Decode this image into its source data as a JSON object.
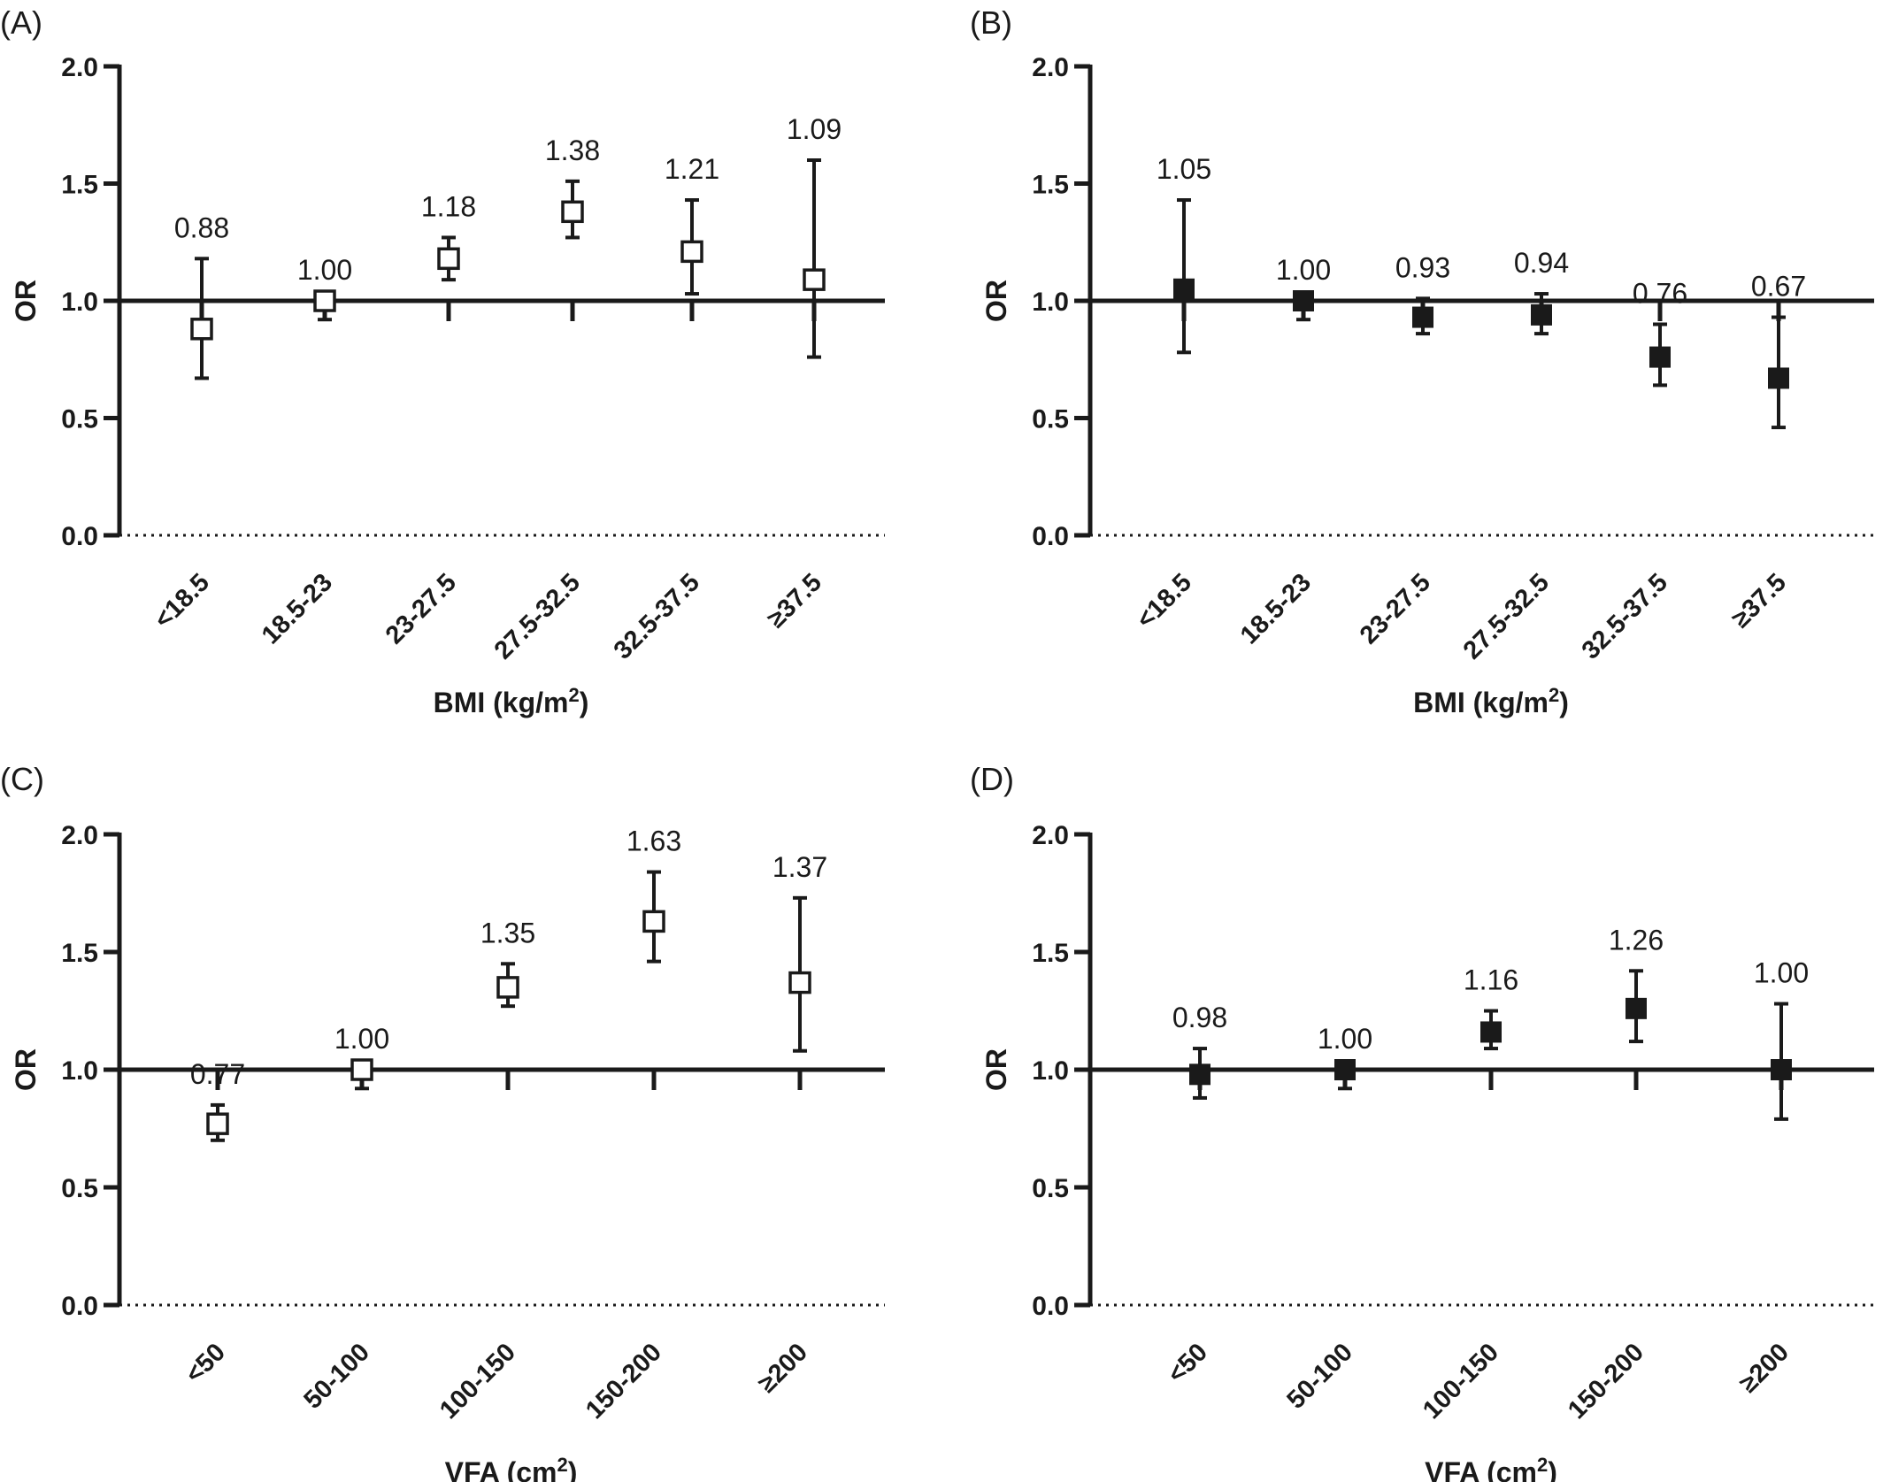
{
  "chart_data": [
    {
      "panel": "(A)",
      "type": "scatter",
      "marker": "open-square",
      "color": "#1a1a1a",
      "ylabel": "OR",
      "xlabel": "BMI (kg/m",
      "xlabel_sup": "2",
      "xlabel_tail": ")",
      "yticks": [
        "0.0",
        "0.5",
        "1.0",
        "1.5",
        "2.0"
      ],
      "ylim": [
        0,
        2
      ],
      "reference_line": 1.0,
      "categories": [
        "<18.5",
        "18.5-23",
        "23-27.5",
        "27.5-32.5",
        "32.5-37.5",
        "≥37.5"
      ],
      "values": [
        0.88,
        1.0,
        1.18,
        1.38,
        1.21,
        1.09
      ],
      "labels": [
        "0.88",
        "1.00",
        "1.18",
        "1.38",
        "1.21",
        "1.09"
      ],
      "ci_lower": [
        0.67,
        0.92,
        1.09,
        1.27,
        1.03,
        0.76
      ],
      "ci_upper": [
        1.18,
        1.0,
        1.27,
        1.51,
        1.43,
        1.6
      ]
    },
    {
      "panel": "(B)",
      "type": "scatter",
      "marker": "filled-square",
      "color": "#1a1a1a",
      "ylabel": "OR",
      "xlabel": "BMI (kg/m",
      "xlabel_sup": "2",
      "xlabel_tail": ")",
      "yticks": [
        "0.0",
        "0.5",
        "1.0",
        "1.5",
        "2.0"
      ],
      "ylim": [
        0,
        2
      ],
      "reference_line": 1.0,
      "categories": [
        "<18.5",
        "18.5-23",
        "23-27.5",
        "27.5-32.5",
        "32.5-37.5",
        "≥37.5"
      ],
      "values": [
        1.05,
        1.0,
        0.93,
        0.94,
        0.76,
        0.67
      ],
      "labels": [
        "1.05",
        "1.00",
        "0.93",
        "0.94",
        "0.76",
        "0.67"
      ],
      "ci_lower": [
        0.78,
        0.92,
        0.86,
        0.86,
        0.64,
        0.46
      ],
      "ci_upper": [
        1.43,
        1.0,
        1.01,
        1.03,
        0.9,
        0.93
      ]
    },
    {
      "panel": "(C)",
      "type": "scatter",
      "marker": "open-square",
      "color": "#1a1a1a",
      "ylabel": "OR",
      "xlabel": "VFA (cm",
      "xlabel_sup": "2",
      "xlabel_tail": ")",
      "yticks": [
        "0.0",
        "0.5",
        "1.0",
        "1.5",
        "2.0"
      ],
      "ylim": [
        0,
        2
      ],
      "reference_line": 1.0,
      "categories": [
        "<50",
        "50-100",
        "100-150",
        "150-200",
        "≥200"
      ],
      "values": [
        0.77,
        1.0,
        1.35,
        1.63,
        1.37
      ],
      "labels": [
        "0.77",
        "1.00",
        "1.35",
        "1.63",
        "1.37"
      ],
      "ci_lower": [
        0.7,
        0.92,
        1.27,
        1.46,
        1.08
      ],
      "ci_upper": [
        0.85,
        1.0,
        1.45,
        1.84,
        1.73
      ]
    },
    {
      "panel": "(D)",
      "type": "scatter",
      "marker": "filled-square",
      "color": "#1a1a1a",
      "ylabel": "OR",
      "xlabel": "VFA (cm",
      "xlabel_sup": "2",
      "xlabel_tail": ")",
      "yticks": [
        "0.0",
        "0.5",
        "1.0",
        "1.5",
        "2.0"
      ],
      "ylim": [
        0,
        2
      ],
      "reference_line": 1.0,
      "categories": [
        "<50",
        "50-100",
        "100-150",
        "150-200",
        "≥200"
      ],
      "values": [
        0.98,
        1.0,
        1.16,
        1.26,
        1.0
      ],
      "labels": [
        "0.98",
        "1.00",
        "1.16",
        "1.26",
        "1.00"
      ],
      "ci_lower": [
        0.88,
        0.92,
        1.09,
        1.12,
        0.79
      ],
      "ci_upper": [
        1.09,
        1.0,
        1.25,
        1.42,
        1.28
      ]
    }
  ]
}
